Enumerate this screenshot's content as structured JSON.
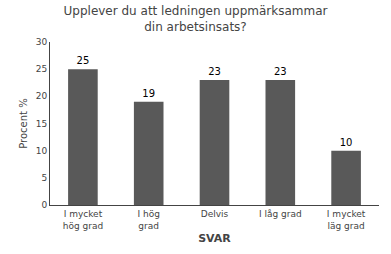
{
  "chart_data": {
    "type": "bar",
    "title": "Upplever du att ledningen uppmärksammar\ndin arbetsinsats?",
    "categories": [
      "I mycket\nhög grad",
      "I hög\ngrad",
      "Delvis",
      "I låg grad",
      "I mycket\nläg grad"
    ],
    "values": [
      25,
      19,
      23,
      23,
      10
    ],
    "color": "#595959",
    "xlabel": "SVAR",
    "ylabel": "Procent %",
    "ylim": [
      0,
      30
    ],
    "yticks": [
      0,
      5,
      10,
      15,
      20,
      25,
      30
    ],
    "grid": false,
    "data_labels": true
  }
}
